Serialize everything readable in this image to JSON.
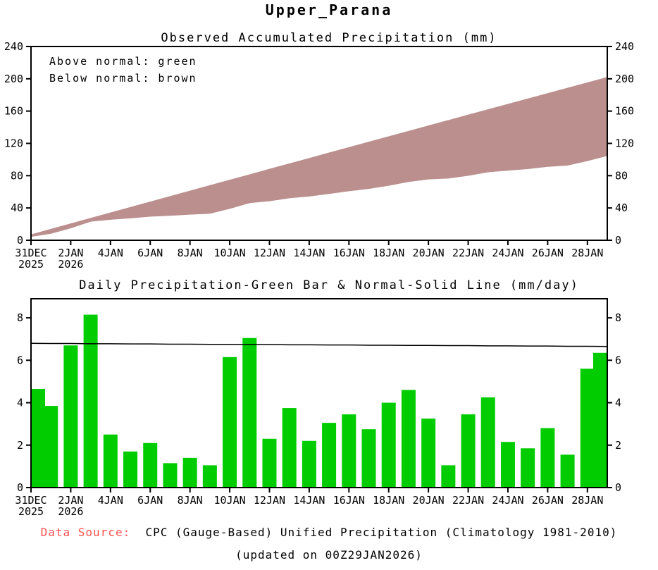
{
  "page": {
    "title": "Upper_Parana"
  },
  "colors": {
    "bar_green": "#00CC00",
    "below_normal_brown": "#BC8F8F",
    "source_label_red": "#FF5050",
    "axis_black": "#000000"
  },
  "footer": {
    "source_label": "Data Source:",
    "source_text": "  CPC (Gauge-Based) Unified Precipitation (Climatology 1981-2010)",
    "updated_text": "(updated on 00Z29JAN2026)"
  },
  "chart_data": [
    {
      "type": "area",
      "title": "Observed Accumulated Precipitation (mm)",
      "legend": [
        "Above normal: green",
        "Below normal: brown"
      ],
      "ylim": [
        0,
        240
      ],
      "yticks": [
        0,
        40,
        80,
        120,
        160,
        200,
        240
      ],
      "x": [
        "31DEC",
        "1JAN",
        "2JAN",
        "3JAN",
        "4JAN",
        "5JAN",
        "6JAN",
        "7JAN",
        "8JAN",
        "9JAN",
        "10JAN",
        "11JAN",
        "12JAN",
        "13JAN",
        "14JAN",
        "15JAN",
        "16JAN",
        "17JAN",
        "18JAN",
        "19JAN",
        "20JAN",
        "21JAN",
        "22JAN",
        "23JAN",
        "24JAN",
        "25JAN",
        "26JAN",
        "27JAN",
        "28JAN",
        "29JAN"
      ],
      "xticks": [
        {
          "i": 0,
          "l1": "31DEC",
          "l2": "2025"
        },
        {
          "i": 2,
          "l1": "2JAN",
          "l2": "2026"
        },
        {
          "i": 4,
          "l1": "4JAN"
        },
        {
          "i": 6,
          "l1": "6JAN"
        },
        {
          "i": 8,
          "l1": "8JAN"
        },
        {
          "i": 10,
          "l1": "10JAN"
        },
        {
          "i": 12,
          "l1": "12JAN"
        },
        {
          "i": 14,
          "l1": "14JAN"
        },
        {
          "i": 16,
          "l1": "16JAN"
        },
        {
          "i": 18,
          "l1": "18JAN"
        },
        {
          "i": 20,
          "l1": "20JAN"
        },
        {
          "i": 22,
          "l1": "22JAN"
        },
        {
          "i": 24,
          "l1": "24JAN"
        },
        {
          "i": 26,
          "l1": "26JAN"
        },
        {
          "i": 28,
          "l1": "28JAN"
        }
      ],
      "series": [
        {
          "name": "normal_accumulated",
          "values": [
            6.8,
            13.6,
            20.4,
            27.2,
            33.9,
            40.7,
            47.5,
            54.2,
            61.0,
            67.8,
            74.5,
            81.2,
            88.0,
            94.7,
            101.4,
            108.2,
            114.9,
            121.6,
            128.3,
            135.0,
            141.7,
            148.4,
            155.1,
            161.8,
            168.4,
            175.1,
            181.8,
            188.4,
            195.1,
            201.8
          ]
        },
        {
          "name": "observed_accumulated",
          "values": [
            4.7,
            8.5,
            15.2,
            23.4,
            25.9,
            27.6,
            29.7,
            30.8,
            32.2,
            33.3,
            39.4,
            46.5,
            48.8,
            52.5,
            54.7,
            57.8,
            61.2,
            64.0,
            68.0,
            72.6,
            75.8,
            76.9,
            80.3,
            84.6,
            86.7,
            88.6,
            91.4,
            92.9,
            98.5,
            104.9
          ]
        }
      ]
    },
    {
      "type": "bar",
      "title": "Daily Precipitation-Green Bar & Normal-Solid Line (mm/day)",
      "ylim": [
        0,
        8.9
      ],
      "yticks": [
        0,
        2,
        4,
        6,
        8
      ],
      "x": [
        "31DEC",
        "1JAN",
        "2JAN",
        "3JAN",
        "4JAN",
        "5JAN",
        "6JAN",
        "7JAN",
        "8JAN",
        "9JAN",
        "10JAN",
        "11JAN",
        "12JAN",
        "13JAN",
        "14JAN",
        "15JAN",
        "16JAN",
        "17JAN",
        "18JAN",
        "19JAN",
        "20JAN",
        "21JAN",
        "22JAN",
        "23JAN",
        "24JAN",
        "25JAN",
        "26JAN",
        "27JAN",
        "28JAN",
        "29JAN"
      ],
      "xticks": [
        {
          "i": 0,
          "l1": "31DEC",
          "l2": "2025"
        },
        {
          "i": 2,
          "l1": "2JAN",
          "l2": "2026"
        },
        {
          "i": 4,
          "l1": "4JAN"
        },
        {
          "i": 6,
          "l1": "6JAN"
        },
        {
          "i": 8,
          "l1": "8JAN"
        },
        {
          "i": 10,
          "l1": "10JAN"
        },
        {
          "i": 12,
          "l1": "12JAN"
        },
        {
          "i": 14,
          "l1": "14JAN"
        },
        {
          "i": 16,
          "l1": "16JAN"
        },
        {
          "i": 18,
          "l1": "18JAN"
        },
        {
          "i": 20,
          "l1": "20JAN"
        },
        {
          "i": 22,
          "l1": "22JAN"
        },
        {
          "i": 24,
          "l1": "24JAN"
        },
        {
          "i": 26,
          "l1": "26JAN"
        },
        {
          "i": 28,
          "l1": "28JAN"
        }
      ],
      "series": [
        {
          "name": "daily_precipitation",
          "values": [
            4.65,
            3.85,
            6.7,
            8.15,
            2.5,
            1.7,
            2.1,
            1.15,
            1.4,
            1.05,
            6.15,
            7.05,
            2.3,
            3.75,
            2.2,
            3.05,
            3.45,
            2.75,
            4.0,
            4.6,
            3.25,
            1.05,
            3.45,
            4.25,
            2.15,
            1.85,
            2.8,
            1.55,
            5.6,
            6.35
          ]
        },
        {
          "name": "normal_daily",
          "values": [
            6.8,
            6.79,
            6.79,
            6.78,
            6.78,
            6.77,
            6.77,
            6.76,
            6.76,
            6.75,
            6.75,
            6.74,
            6.74,
            6.73,
            6.73,
            6.72,
            6.72,
            6.71,
            6.71,
            6.7,
            6.7,
            6.69,
            6.69,
            6.68,
            6.68,
            6.67,
            6.67,
            6.66,
            6.66,
            6.65
          ]
        }
      ]
    }
  ]
}
